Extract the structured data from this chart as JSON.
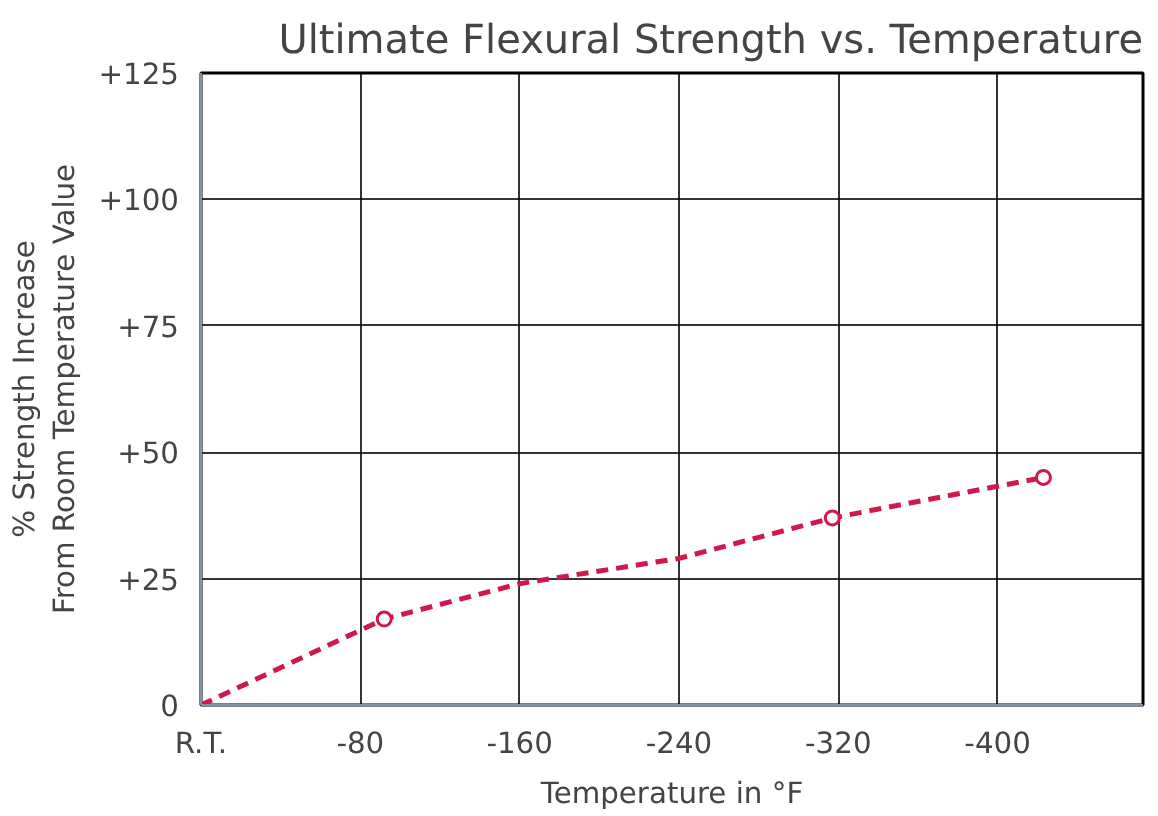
{
  "chart_data": {
    "type": "line",
    "title": "Ultimate Flexural Strength vs. Temperature",
    "xlabel": "Temperature in °F",
    "ylabel": "% Strength Increase\nFrom Room Temperature Value",
    "xlim": [
      0,
      -473
    ],
    "xticks": [
      {
        "value": 0,
        "label": "R.T."
      },
      -80,
      -160,
      -240,
      -320,
      -400
    ],
    "ylim": [
      0,
      125
    ],
    "yticks": [
      0,
      {
        "value": 25,
        "label": "+25"
      },
      {
        "value": 50,
        "label": "+50"
      },
      {
        "value": 75,
        "label": "+75"
      },
      {
        "value": 100,
        "label": "+100"
      },
      {
        "value": 125,
        "label": "+125"
      }
    ],
    "grid": true,
    "series": [
      {
        "color": "#d0184a",
        "line_style": "dashed",
        "marker": "none",
        "x": [
          0,
          -92,
          -160,
          -240,
          -317,
          -423
        ],
        "values": [
          0,
          17,
          24,
          29,
          37,
          45
        ]
      },
      {
        "type": "scatter",
        "color": "#d0184a",
        "marker": "circle",
        "x": [
          -92,
          -317,
          -423
        ],
        "values": [
          17,
          37,
          45
        ]
      }
    ]
  }
}
